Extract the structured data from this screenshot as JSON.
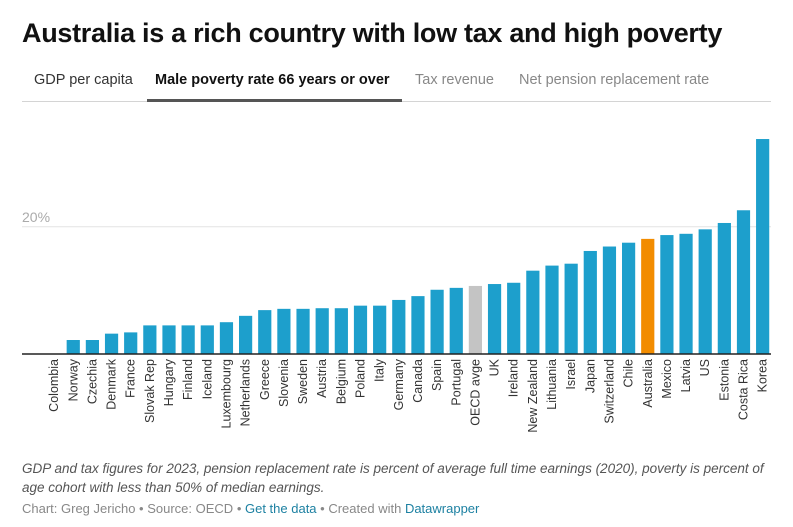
{
  "title": "Australia is a rich country with low tax and high poverty",
  "tabs": [
    {
      "label": "GDP per capita",
      "active": false
    },
    {
      "label": "Male poverty rate 66 years or over",
      "active": true
    },
    {
      "label": "Tax revenue",
      "active": false
    },
    {
      "label": "Net pension replacement rate",
      "active": false
    }
  ],
  "colors": {
    "default_bar": "#1d9fcc",
    "highlight_bar": "#f28c00",
    "average_bar": "#c4c4c4"
  },
  "chart_data": {
    "type": "bar",
    "title": "Male poverty rate 66 years or over",
    "xlabel": "",
    "ylabel": "",
    "ylim": [
      0,
      34
    ],
    "yticks": [
      {
        "value": 20,
        "label": "20%"
      }
    ],
    "grid": true,
    "categories": [
      "Colombia",
      "Norway",
      "Czechia",
      "Denmark",
      "France",
      "Slovak Rep",
      "Hungary",
      "Finland",
      "Iceland",
      "Luxembourg",
      "Netherlands",
      "Greece",
      "Slovenia",
      "Sweden",
      "Austria",
      "Belgium",
      "Poland",
      "Italy",
      "Germany",
      "Canada",
      "Spain",
      "Portugal",
      "OECD avge",
      "UK",
      "Ireland",
      "New Zealand",
      "Lithuania",
      "Israel",
      "Japan",
      "Switzerland",
      "Chile",
      "Australia",
      "Mexico",
      "Latvia",
      "US",
      "Estonia",
      "Costa Rica",
      "Korea"
    ],
    "values": [
      0.0,
      2.2,
      2.2,
      3.2,
      3.4,
      4.5,
      4.5,
      4.5,
      4.5,
      5.0,
      6.0,
      6.9,
      7.1,
      7.1,
      7.2,
      7.2,
      7.6,
      7.6,
      8.5,
      9.1,
      10.1,
      10.4,
      10.7,
      11.0,
      11.2,
      13.1,
      13.9,
      14.2,
      16.2,
      16.9,
      17.5,
      18.1,
      18.7,
      18.9,
      19.6,
      20.6,
      22.6,
      33.8
    ],
    "highlight": {
      "Australia": "highlight_bar",
      "OECD avge": "average_bar"
    }
  },
  "footer": {
    "note": "GDP and tax figures for 2023, pension replacement rate is percent of average full time earnings (2020), poverty is percent of age cohort with less than 50% of median earnings.",
    "chart_by": "Chart: Greg Jericho",
    "separator": " • ",
    "source": "Source: OECD",
    "get_data": "Get the data",
    "created_with": "Created with",
    "datawrapper": "Datawrapper"
  }
}
